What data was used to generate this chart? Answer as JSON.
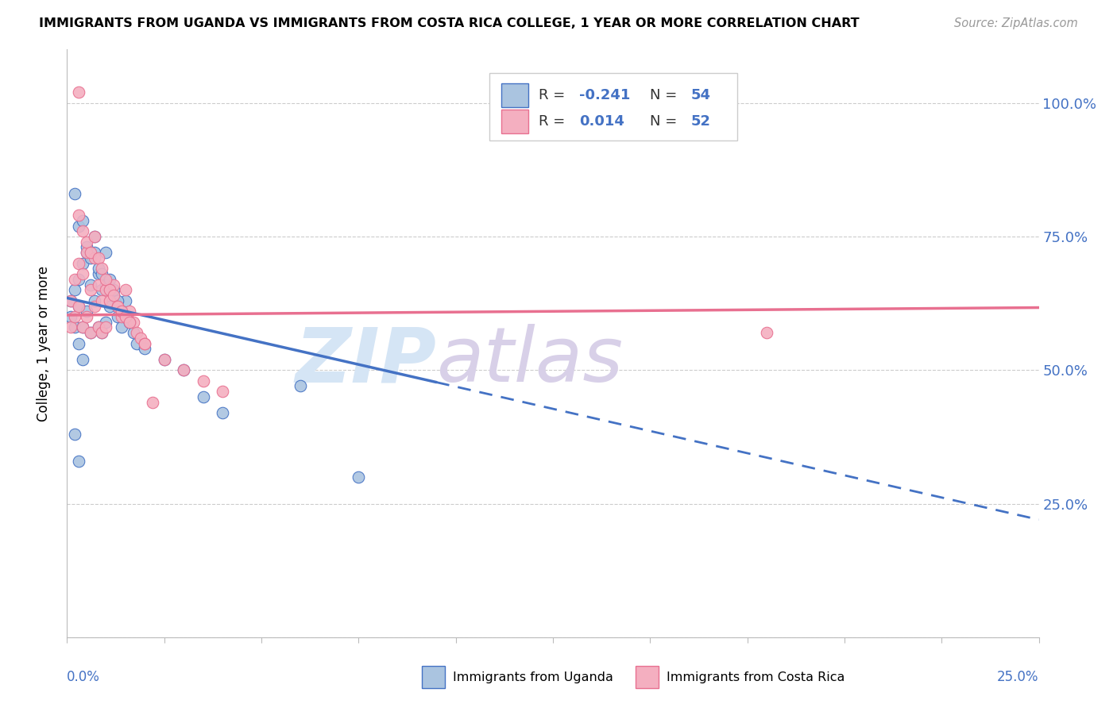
{
  "title": "IMMIGRANTS FROM UGANDA VS IMMIGRANTS FROM COSTA RICA COLLEGE, 1 YEAR OR MORE CORRELATION CHART",
  "source": "Source: ZipAtlas.com",
  "ylabel": "College, 1 year or more",
  "right_ytick_labels": [
    "100.0%",
    "75.0%",
    "50.0%",
    "25.0%"
  ],
  "right_ytick_values": [
    1.0,
    0.75,
    0.5,
    0.25
  ],
  "color_uganda": "#aac4e0",
  "color_costa_rica": "#f4afc0",
  "line_color_uganda": "#4472c4",
  "line_color_costa_rica": "#e87090",
  "xlim": [
    0.0,
    0.25
  ],
  "ylim": [
    0.0,
    1.1
  ],
  "uganda_x": [
    0.001,
    0.001,
    0.002,
    0.002,
    0.003,
    0.003,
    0.003,
    0.004,
    0.004,
    0.004,
    0.005,
    0.005,
    0.006,
    0.006,
    0.007,
    0.007,
    0.008,
    0.008,
    0.009,
    0.009,
    0.01,
    0.01,
    0.011,
    0.012,
    0.013,
    0.014,
    0.015,
    0.016,
    0.017,
    0.018,
    0.002,
    0.003,
    0.004,
    0.005,
    0.006,
    0.007,
    0.008,
    0.009,
    0.01,
    0.011,
    0.012,
    0.013,
    0.014,
    0.015,
    0.016,
    0.02,
    0.025,
    0.03,
    0.035,
    0.04,
    0.002,
    0.003,
    0.06,
    0.075
  ],
  "uganda_y": [
    0.63,
    0.6,
    0.65,
    0.58,
    0.67,
    0.62,
    0.55,
    0.7,
    0.58,
    0.52,
    0.72,
    0.61,
    0.66,
    0.57,
    0.75,
    0.63,
    0.68,
    0.58,
    0.65,
    0.57,
    0.66,
    0.59,
    0.62,
    0.64,
    0.6,
    0.58,
    0.63,
    0.59,
    0.57,
    0.55,
    0.83,
    0.77,
    0.78,
    0.73,
    0.71,
    0.72,
    0.69,
    0.68,
    0.72,
    0.67,
    0.65,
    0.63,
    0.61,
    0.6,
    0.59,
    0.54,
    0.52,
    0.5,
    0.45,
    0.42,
    0.38,
    0.33,
    0.47,
    0.3
  ],
  "costa_rica_x": [
    0.001,
    0.001,
    0.002,
    0.002,
    0.003,
    0.003,
    0.004,
    0.004,
    0.005,
    0.005,
    0.006,
    0.006,
    0.007,
    0.007,
    0.008,
    0.008,
    0.009,
    0.009,
    0.01,
    0.01,
    0.011,
    0.012,
    0.013,
    0.014,
    0.015,
    0.016,
    0.017,
    0.018,
    0.019,
    0.02,
    0.003,
    0.004,
    0.005,
    0.006,
    0.007,
    0.008,
    0.009,
    0.01,
    0.011,
    0.012,
    0.013,
    0.014,
    0.015,
    0.016,
    0.02,
    0.025,
    0.03,
    0.035,
    0.04,
    0.18,
    0.003,
    0.022
  ],
  "costa_rica_y": [
    0.63,
    0.58,
    0.67,
    0.6,
    0.7,
    0.62,
    0.68,
    0.58,
    0.72,
    0.6,
    0.65,
    0.57,
    0.71,
    0.62,
    0.66,
    0.58,
    0.63,
    0.57,
    0.65,
    0.58,
    0.63,
    0.66,
    0.62,
    0.6,
    0.65,
    0.61,
    0.59,
    0.57,
    0.56,
    0.55,
    0.79,
    0.76,
    0.74,
    0.72,
    0.75,
    0.71,
    0.69,
    0.67,
    0.65,
    0.64,
    0.62,
    0.61,
    0.6,
    0.59,
    0.55,
    0.52,
    0.5,
    0.48,
    0.46,
    0.57,
    1.02,
    0.44
  ],
  "ug_line_x0": 0.0,
  "ug_line_x_solid_end": 0.095,
  "ug_line_x_dash_end": 0.25,
  "ug_line_y0": 0.635,
  "ug_line_y_end": 0.22,
  "cr_line_x0": 0.0,
  "cr_line_x1": 0.25,
  "cr_line_y0": 0.603,
  "cr_line_y1": 0.617
}
